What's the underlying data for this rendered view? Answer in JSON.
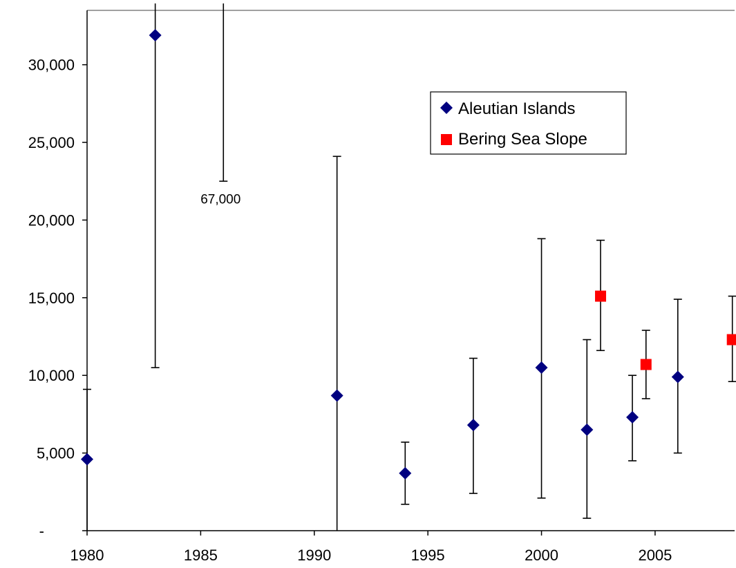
{
  "chart_data": {
    "type": "scatter",
    "title": "",
    "xlabel": "",
    "ylabel": "",
    "xlim": [
      1980,
      2008.5
    ],
    "ylim": [
      0,
      33500
    ],
    "x_ticks": [
      1980,
      1985,
      1990,
      1995,
      2000,
      2005
    ],
    "x_tick_labels": [
      "1980",
      "1985",
      "1990",
      "1995",
      "2000",
      "2005"
    ],
    "y_ticks": [
      0,
      5000,
      10000,
      15000,
      20000,
      25000,
      30000
    ],
    "y_tick_labels": [
      "-",
      "5,000",
      "10,000",
      "15,000",
      "20,000",
      "25,000",
      "30,000"
    ],
    "grid": false,
    "legend_position": "top-center-right",
    "series": [
      {
        "name": "Aleutian Islands",
        "marker": "diamond",
        "color": "#000080",
        "points": [
          {
            "x": 1980,
            "y": 4600,
            "low": 0,
            "high": 9100
          },
          {
            "x": 1983,
            "y": 31900,
            "low": 10500,
            "high": 67000
          },
          {
            "x": 1991,
            "y": 8700,
            "low": 0,
            "high": 24100
          },
          {
            "x": 1994,
            "y": 3700,
            "low": 1700,
            "high": 5700
          },
          {
            "x": 1997,
            "y": 6800,
            "low": 2400,
            "high": 11100
          },
          {
            "x": 2000,
            "y": 10500,
            "low": 2100,
            "high": 18800
          },
          {
            "x": 2002,
            "y": 6500,
            "low": 800,
            "high": 12300
          },
          {
            "x": 2004,
            "y": 7300,
            "low": 4500,
            "high": 10000
          },
          {
            "x": 2006,
            "y": 9900,
            "low": 5000,
            "high": 14900
          }
        ]
      },
      {
        "name": "Bering Sea Slope",
        "marker": "square",
        "color": "#ff0000",
        "points": [
          {
            "x": 2002.6,
            "y": 15100,
            "low": 11600,
            "high": 18700
          },
          {
            "x": 2004.6,
            "y": 10700,
            "low": 8500,
            "high": 12900
          },
          {
            "x": 2008.4,
            "y": 12300,
            "low": 9600,
            "high": 15100
          }
        ]
      }
    ],
    "offscale_errorbar": {
      "x": 1986,
      "low": 22500,
      "label": "67,000"
    }
  }
}
